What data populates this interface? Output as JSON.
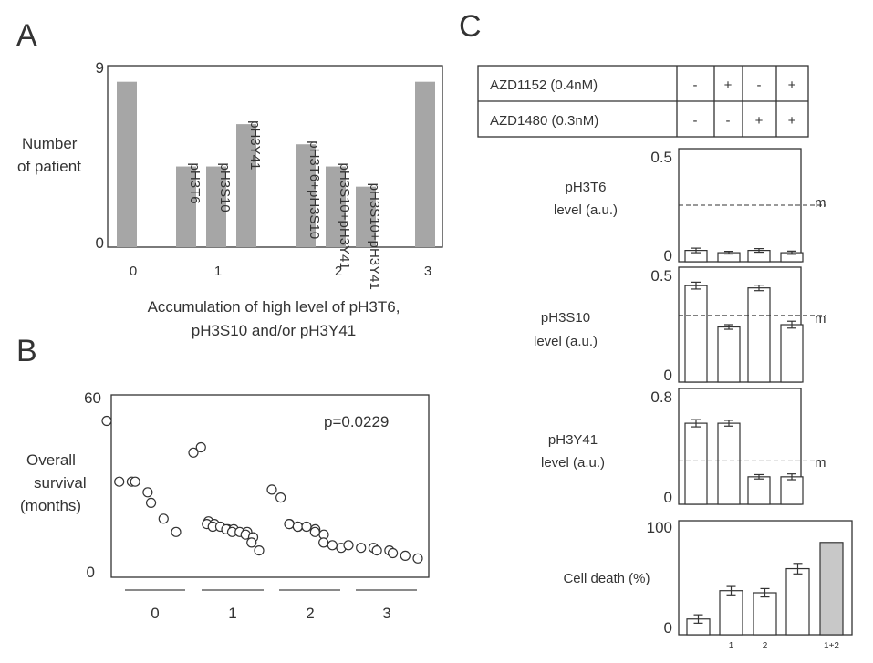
{
  "panels": {
    "a": "A",
    "b": "B",
    "c": "C"
  },
  "colors": {
    "bar_gray": "#a6a6a6",
    "axis": "#333333",
    "highlight_bar": "#c8c8c8"
  },
  "chart_data": [
    {
      "id": "A",
      "type": "bar",
      "ylabel_lines": [
        "Number",
        "of patient"
      ],
      "xlabel_lines": [
        "Accumulation of high level of pH3T6,",
        "pH3S10 and/or pH3Y41"
      ],
      "yticks": [
        "9",
        "0"
      ],
      "ylim": [
        0,
        9
      ],
      "xticks": [
        "0",
        "1",
        "2",
        "3"
      ],
      "bars": [
        {
          "label": "",
          "value": 8.2,
          "group": "0"
        },
        {
          "label": "pH3T6",
          "value": 4.0,
          "group": "1"
        },
        {
          "label": "pH3S10",
          "value": 4.0,
          "group": "1"
        },
        {
          "label": "pH3Y41",
          "value": 6.1,
          "group": "1"
        },
        {
          "label": "pH3T6+pH3S10",
          "value": 5.1,
          "group": "2"
        },
        {
          "label": "pH3S10+pH3Y41",
          "value": 4.0,
          "group": "2"
        },
        {
          "label": "pH3S10+pH3Y41",
          "value": 3.0,
          "group": "2"
        },
        {
          "label": "",
          "value": 8.2,
          "group": "3"
        }
      ]
    },
    {
      "id": "B",
      "type": "scatter",
      "ylabel_lines": [
        "Overall",
        "survival",
        "(months)"
      ],
      "yticks": [
        "60",
        "0"
      ],
      "ylim": [
        0,
        60
      ],
      "xticks": [
        "0",
        "1",
        "2",
        "3"
      ],
      "annotation": "p=0.0229",
      "groups": [
        {
          "name": "0",
          "values": [
            55,
            32,
            32,
            32,
            28,
            24,
            18,
            13
          ]
        },
        {
          "name": "1",
          "values": [
            43,
            45,
            17,
            16,
            16,
            15,
            15,
            14,
            14,
            14,
            13,
            13,
            13,
            12,
            11,
            9,
            6
          ]
        },
        {
          "name": "2",
          "values": [
            29,
            26,
            16,
            16,
            15,
            15,
            15,
            14,
            13,
            12,
            9,
            8,
            7
          ]
        },
        {
          "name": "3",
          "values": [
            8,
            7,
            7,
            6,
            6,
            5,
            4,
            3
          ]
        }
      ]
    },
    {
      "id": "C",
      "type": "table",
      "rows": [
        {
          "label": "AZD1152 (0.4nM)",
          "cells": [
            "-",
            "+",
            "-",
            "+"
          ]
        },
        {
          "label": "AZD1480 (0.3nM)",
          "cells": [
            "-",
            "-",
            "+",
            "+"
          ]
        }
      ]
    },
    {
      "id": "C-pH3T6",
      "type": "bar",
      "ylabel_lines": [
        "pH3T6",
        "level (a.u.)"
      ],
      "yticks": [
        "0.5",
        "0"
      ],
      "ylim": [
        0,
        0.5
      ],
      "values": [
        0.05,
        0.04,
        0.05,
        0.04
      ],
      "errors": [
        0.01,
        0.006,
        0.008,
        0.007
      ],
      "reference_line": {
        "value": 0.25,
        "label": "m"
      }
    },
    {
      "id": "C-pH3S10",
      "type": "bar",
      "ylabel_lines": [
        "pH3S10",
        "level (a.u.)"
      ],
      "yticks": [
        "0.5",
        "0"
      ],
      "ylim": [
        0,
        0.5
      ],
      "values": [
        0.42,
        0.24,
        0.41,
        0.25
      ],
      "errors": [
        0.015,
        0.01,
        0.012,
        0.015
      ],
      "reference_line": {
        "value": 0.29,
        "label": "m"
      }
    },
    {
      "id": "C-pH3Y41",
      "type": "bar",
      "ylabel_lines": [
        "pH3Y41",
        "level (a.u.)"
      ],
      "yticks": [
        "0.8",
        "0"
      ],
      "ylim": [
        0,
        0.8
      ],
      "values": [
        0.56,
        0.56,
        0.19,
        0.19
      ],
      "errors": [
        0.025,
        0.02,
        0.015,
        0.02
      ],
      "reference_line": {
        "value": 0.3,
        "label": "m"
      }
    },
    {
      "id": "C-celldeath",
      "type": "bar",
      "ylabel_lines": [
        "Cell death (%)"
      ],
      "yticks": [
        "100",
        "0"
      ],
      "ylim": [
        0,
        100
      ],
      "categories": [
        "",
        "1",
        "2",
        "",
        "1+2"
      ],
      "values": [
        15,
        42,
        40,
        63,
        88
      ],
      "errors": [
        4,
        4,
        4,
        5,
        0
      ],
      "highlight_index": 4
    }
  ]
}
